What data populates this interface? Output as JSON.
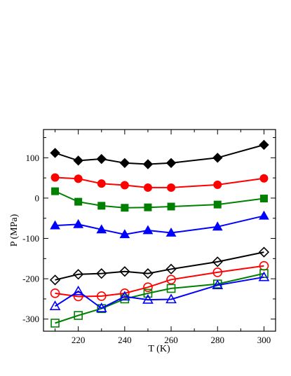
{
  "chart_data": {
    "type": "line",
    "xlabel": "T (K)",
    "ylabel": "P (MPa)",
    "xlim": [
      205,
      305
    ],
    "ylim": [
      -330,
      170
    ],
    "xticks": [
      220,
      240,
      260,
      280,
      300
    ],
    "yticks": [
      100,
      0,
      -100,
      -200,
      -300
    ],
    "grid": false,
    "series": [
      {
        "marker": "diamond",
        "filled": true,
        "color": "#000000",
        "x": [
          210,
          220,
          230,
          240,
          250,
          260,
          280,
          300
        ],
        "y": [
          112,
          93,
          97,
          87,
          84,
          87,
          100,
          132
        ]
      },
      {
        "marker": "circle",
        "filled": true,
        "color": "#ff0000",
        "x": [
          210,
          220,
          230,
          240,
          250,
          260,
          280,
          300
        ],
        "y": [
          51,
          48,
          36,
          32,
          26,
          26,
          33,
          49
        ]
      },
      {
        "marker": "square",
        "filled": true,
        "color": "#008000",
        "x": [
          210,
          220,
          230,
          240,
          250,
          260,
          280,
          300
        ],
        "y": [
          17,
          -9,
          -19,
          -24,
          -23,
          -21,
          -16,
          -1
        ]
      },
      {
        "marker": "triangle",
        "filled": true,
        "color": "#0000ff",
        "x": [
          210,
          220,
          230,
          240,
          250,
          260,
          280,
          300
        ],
        "y": [
          -68,
          -65,
          -78,
          -90,
          -80,
          -86,
          -71,
          -44
        ]
      },
      {
        "marker": "diamond",
        "filled": false,
        "color": "#000000",
        "x": [
          210,
          220,
          230,
          240,
          250,
          260,
          280,
          300
        ],
        "y": [
          -203,
          -189,
          -187,
          -182,
          -187,
          -176,
          -158,
          -134
        ]
      },
      {
        "marker": "circle",
        "filled": false,
        "color": "#ff0000",
        "x": [
          210,
          220,
          230,
          240,
          250,
          260,
          280,
          300
        ],
        "y": [
          -236,
          -244,
          -243,
          -236,
          -221,
          -202,
          -184,
          -168
        ]
      },
      {
        "marker": "square",
        "filled": false,
        "color": "#008000",
        "x": [
          210,
          220,
          230,
          240,
          250,
          260,
          280,
          300
        ],
        "y": [
          -310,
          -291,
          -274,
          -250,
          -236,
          -224,
          -213,
          -187
        ]
      },
      {
        "marker": "triangle",
        "filled": false,
        "color": "#0000ff",
        "x": [
          210,
          220,
          230,
          240,
          250,
          260,
          280,
          300
        ],
        "y": [
          -268,
          -231,
          -273,
          -244,
          -252,
          -251,
          -216,
          -196
        ]
      }
    ]
  }
}
